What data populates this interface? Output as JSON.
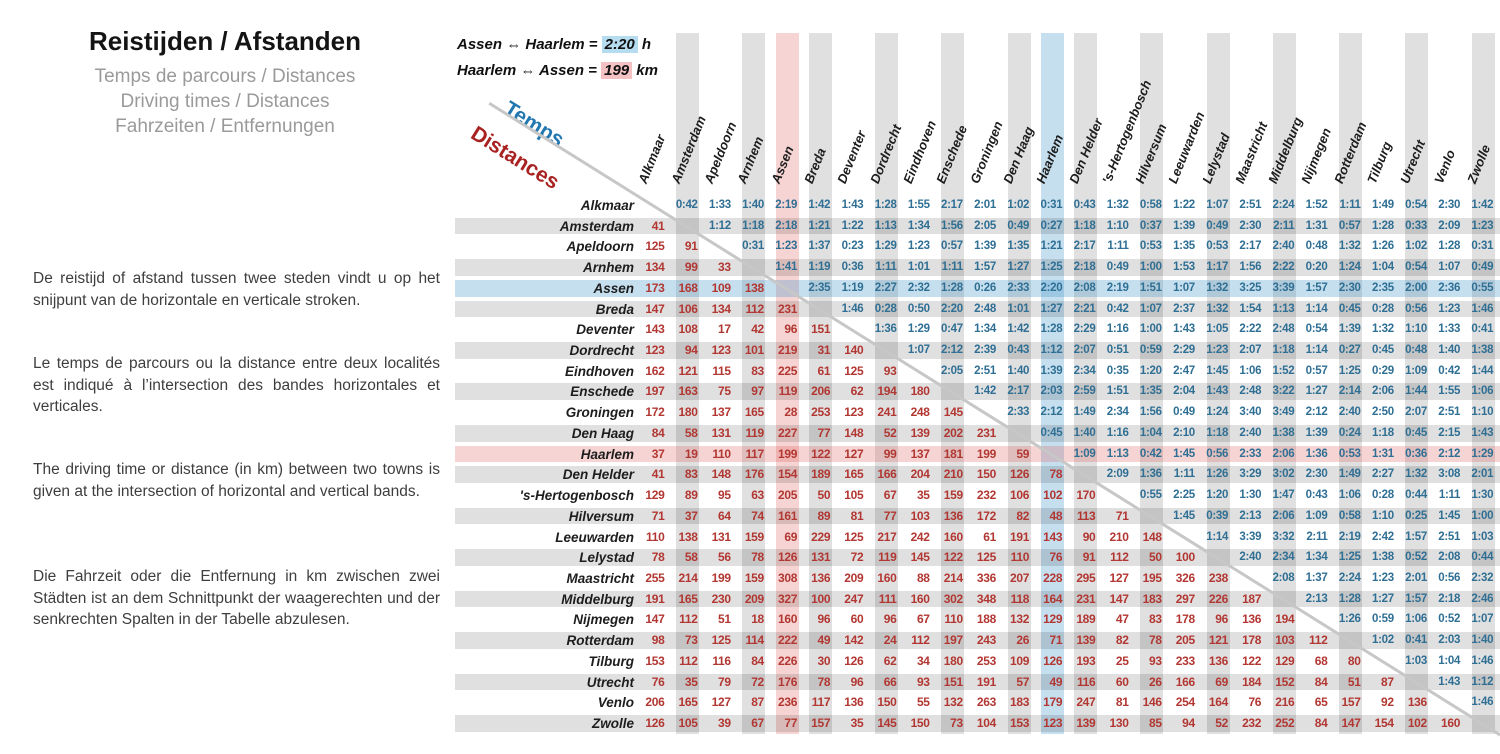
{
  "page": {
    "title": "Reistijden / Afstanden",
    "subtitles": [
      "Temps de parcours / Distances",
      "Driving times / Distances",
      "Fahrzeiten / Entfernungen"
    ],
    "paragraphs": {
      "nl": "De reistijd of afstand tussen twee steden vindt u op het snijpunt van de horizontale en verticale stroken.",
      "fr": "Le temps de parcours ou la distance entre deux localités est indiqué à l’intersection des bandes horizontales et verticales.",
      "en": "The driving time or distance (in km) between two towns is given at the intersection of horizontal and vertical bands.",
      "de": "Die Fahrzeit oder die Entfernung in km zwischen zwei Städten ist an dem Schnittpunkt der waagerechten und der senkrechten Spalten in der Tabelle abzulesen."
    },
    "legend": {
      "line1_prefix": "Assen ⇔ Haarlem = ",
      "line1_value": "2:20",
      "line1_suffix": " h",
      "line2_prefix": "Haarlem ⇔ Assen = ",
      "line2_value": "199",
      "line2_suffix": " km"
    },
    "diagonal_labels": {
      "time": "Temps",
      "distance": "Distances"
    }
  },
  "colors": {
    "time_text": "#2f6f94",
    "distance_text": "#b23732",
    "band_gray": "#e0e0e0",
    "highlight_blue": "#c8e1f1",
    "highlight_pink": "#f6d6d6",
    "legend_time_chip": "#b6dcf0",
    "legend_distance_chip": "#f4c2c2"
  },
  "chart_data": {
    "type": "table",
    "title": "Reistijden / Afstanden",
    "upper_triangle": "driving time (h:mm)",
    "lower_triangle": "distance (km)",
    "highlight_example": {
      "time_row": "Assen",
      "time_col": "Haarlem",
      "time": "2:20",
      "distance_row": "Haarlem",
      "distance_col": "Assen",
      "distance_km": 199
    },
    "cities": [
      "Alkmaar",
      "Amsterdam",
      "Apeldoorn",
      "Arnhem",
      "Assen",
      "Breda",
      "Deventer",
      "Dordrecht",
      "Eindhoven",
      "Enschede",
      "Groningen",
      "Den Haag",
      "Haarlem",
      "Den Helder",
      "'s-Hertogenbosch",
      "Hilversum",
      "Leeuwarden",
      "Lelystad",
      "Maastricht",
      "Middelburg",
      "Nijmegen",
      "Rotterdam",
      "Tilburg",
      "Utrecht",
      "Venlo",
      "Zwolle"
    ],
    "matrix": [
      [
        null,
        "0:42",
        "1:33",
        "1:40",
        "2:19",
        "1:42",
        "1:43",
        "1:28",
        "1:55",
        "2:17",
        "2:01",
        "1:02",
        "0:31",
        "0:43",
        "1:32",
        "0:58",
        "1:22",
        "1:07",
        "2:51",
        "2:24",
        "1:52",
        "1:11",
        "1:49",
        "0:54",
        "2:30",
        "1:42"
      ],
      [
        "41",
        null,
        "1:12",
        "1:18",
        "2:18",
        "1:21",
        "1:22",
        "1:13",
        "1:34",
        "1:56",
        "2:05",
        "0:49",
        "0:27",
        "1:18",
        "1:10",
        "0:37",
        "1:39",
        "0:49",
        "2:30",
        "2:11",
        "1:31",
        "0:57",
        "1:28",
        "0:33",
        "2:09",
        "1:23"
      ],
      [
        "125",
        "91",
        null,
        "0:31",
        "1:23",
        "1:37",
        "0:23",
        "1:29",
        "1:23",
        "0:57",
        "1:39",
        "1:35",
        "1:21",
        "2:17",
        "1:11",
        "0:53",
        "1:35",
        "0:53",
        "2:17",
        "2:40",
        "0:48",
        "1:32",
        "1:26",
        "1:02",
        "1:28",
        "0:31"
      ],
      [
        "134",
        "99",
        "33",
        null,
        "1:41",
        "1:19",
        "0:36",
        "1:11",
        "1:01",
        "1:11",
        "1:57",
        "1:27",
        "1:25",
        "2:18",
        "0:49",
        "1:00",
        "1:53",
        "1:17",
        "1:56",
        "2:22",
        "0:20",
        "1:24",
        "1:04",
        "0:54",
        "1:07",
        "0:49"
      ],
      [
        "173",
        "168",
        "109",
        "138",
        null,
        "2:35",
        "1:19",
        "2:27",
        "2:32",
        "1:28",
        "0:26",
        "2:33",
        "2:20",
        "2:08",
        "2:19",
        "1:51",
        "1:07",
        "1:32",
        "3:25",
        "3:39",
        "1:57",
        "2:30",
        "2:35",
        "2:00",
        "2:36",
        "0:55"
      ],
      [
        "147",
        "106",
        "134",
        "112",
        "231",
        null,
        "1:46",
        "0:28",
        "0:50",
        "2:20",
        "2:48",
        "1:01",
        "1:27",
        "2:21",
        "0:42",
        "1:07",
        "2:37",
        "1:32",
        "1:54",
        "1:13",
        "1:14",
        "0:45",
        "0:28",
        "0:56",
        "1:23",
        "1:46"
      ],
      [
        "143",
        "108",
        "17",
        "42",
        "96",
        "151",
        null,
        "1:36",
        "1:29",
        "0:47",
        "1:34",
        "1:42",
        "1:28",
        "2:29",
        "1:16",
        "1:00",
        "1:43",
        "1:05",
        "2:22",
        "2:48",
        "0:54",
        "1:39",
        "1:32",
        "1:10",
        "1:33",
        "0:41"
      ],
      [
        "123",
        "94",
        "123",
        "101",
        "219",
        "31",
        "140",
        null,
        "1:07",
        "2:12",
        "2:39",
        "0:43",
        "1:12",
        "2:07",
        "0:51",
        "0:59",
        "2:29",
        "1:23",
        "2:07",
        "1:18",
        "1:14",
        "0:27",
        "0:45",
        "0:48",
        "1:40",
        "1:38"
      ],
      [
        "162",
        "121",
        "115",
        "83",
        "225",
        "61",
        "125",
        "93",
        null,
        "2:05",
        "2:51",
        "1:40",
        "1:39",
        "2:34",
        "0:35",
        "1:20",
        "2:47",
        "1:45",
        "1:06",
        "1:52",
        "0:57",
        "1:25",
        "0:29",
        "1:09",
        "0:42",
        "1:44"
      ],
      [
        "197",
        "163",
        "75",
        "97",
        "119",
        "206",
        "62",
        "194",
        "180",
        null,
        "1:42",
        "2:17",
        "2:03",
        "2:59",
        "1:51",
        "1:35",
        "2:04",
        "1:43",
        "2:48",
        "3:22",
        "1:27",
        "2:14",
        "2:06",
        "1:44",
        "1:55",
        "1:06"
      ],
      [
        "172",
        "180",
        "137",
        "165",
        "28",
        "253",
        "123",
        "241",
        "248",
        "145",
        null,
        "2:33",
        "2:12",
        "1:49",
        "2:34",
        "1:56",
        "0:49",
        "1:24",
        "3:40",
        "3:49",
        "2:12",
        "2:40",
        "2:50",
        "2:07",
        "2:51",
        "1:10"
      ],
      [
        "84",
        "58",
        "131",
        "119",
        "227",
        "77",
        "148",
        "52",
        "139",
        "202",
        "231",
        null,
        "0:45",
        "1:40",
        "1:16",
        "1:04",
        "2:10",
        "1:18",
        "2:40",
        "1:38",
        "1:39",
        "0:24",
        "1:18",
        "0:45",
        "2:15",
        "1:43"
      ],
      [
        "37",
        "19",
        "110",
        "117",
        "199",
        "122",
        "127",
        "99",
        "137",
        "181",
        "199",
        "59",
        null,
        "1:09",
        "1:13",
        "0:42",
        "1:45",
        "0:56",
        "2:33",
        "2:06",
        "1:36",
        "0:53",
        "1:31",
        "0:36",
        "2:12",
        "1:29"
      ],
      [
        "41",
        "83",
        "148",
        "176",
        "154",
        "189",
        "165",
        "166",
        "204",
        "210",
        "150",
        "126",
        "78",
        null,
        "2:09",
        "1:36",
        "1:11",
        "1:26",
        "3:29",
        "3:02",
        "2:30",
        "1:49",
        "2:27",
        "1:32",
        "3:08",
        "2:01"
      ],
      [
        "129",
        "89",
        "95",
        "63",
        "205",
        "50",
        "105",
        "67",
        "35",
        "159",
        "232",
        "106",
        "102",
        "170",
        null,
        "0:55",
        "2:25",
        "1:20",
        "1:30",
        "1:47",
        "0:43",
        "1:06",
        "0:28",
        "0:44",
        "1:11",
        "1:30"
      ],
      [
        "71",
        "37",
        "64",
        "74",
        "161",
        "89",
        "81",
        "77",
        "103",
        "136",
        "172",
        "82",
        "48",
        "113",
        "71",
        null,
        "1:45",
        "0:39",
        "2:13",
        "2:06",
        "1:09",
        "0:58",
        "1:10",
        "0:25",
        "1:45",
        "1:00"
      ],
      [
        "110",
        "138",
        "131",
        "159",
        "69",
        "229",
        "125",
        "217",
        "242",
        "160",
        "61",
        "191",
        "143",
        "90",
        "210",
        "148",
        null,
        "1:14",
        "3:39",
        "3:32",
        "2:11",
        "2:19",
        "2:42",
        "1:57",
        "2:51",
        "1:03"
      ],
      [
        "78",
        "58",
        "56",
        "78",
        "126",
        "131",
        "72",
        "119",
        "145",
        "122",
        "125",
        "110",
        "76",
        "91",
        "112",
        "50",
        "100",
        null,
        "2:40",
        "2:34",
        "1:34",
        "1:25",
        "1:38",
        "0:52",
        "2:08",
        "0:44"
      ],
      [
        "255",
        "214",
        "199",
        "159",
        "308",
        "136",
        "209",
        "160",
        "88",
        "214",
        "336",
        "207",
        "228",
        "295",
        "127",
        "195",
        "326",
        "238",
        null,
        "2:08",
        "1:37",
        "2:24",
        "1:23",
        "2:01",
        "0:56",
        "2:32"
      ],
      [
        "191",
        "165",
        "230",
        "209",
        "327",
        "100",
        "247",
        "111",
        "160",
        "302",
        "348",
        "118",
        "164",
        "231",
        "147",
        "183",
        "297",
        "226",
        "187",
        null,
        "2:13",
        "1:28",
        "1:27",
        "1:57",
        "2:18",
        "2:46"
      ],
      [
        "147",
        "112",
        "51",
        "18",
        "160",
        "96",
        "60",
        "96",
        "67",
        "110",
        "188",
        "132",
        "129",
        "189",
        "47",
        "83",
        "178",
        "96",
        "136",
        "194",
        null,
        "1:26",
        "0:59",
        "1:06",
        "0:52",
        "1:07"
      ],
      [
        "98",
        "73",
        "125",
        "114",
        "222",
        "49",
        "142",
        "24",
        "112",
        "197",
        "243",
        "26",
        "71",
        "139",
        "82",
        "78",
        "205",
        "121",
        "178",
        "103",
        "112",
        null,
        "1:02",
        "0:41",
        "2:03",
        "1:40"
      ],
      [
        "153",
        "112",
        "116",
        "84",
        "226",
        "30",
        "126",
        "62",
        "34",
        "180",
        "253",
        "109",
        "126",
        "193",
        "25",
        "93",
        "233",
        "136",
        "122",
        "129",
        "68",
        "80",
        null,
        "1:03",
        "1:04",
        "1:46"
      ],
      [
        "76",
        "35",
        "79",
        "72",
        "176",
        "78",
        "96",
        "66",
        "93",
        "151",
        "191",
        "57",
        "49",
        "116",
        "60",
        "26",
        "166",
        "69",
        "184",
        "152",
        "84",
        "51",
        "87",
        null,
        "1:43",
        "1:12"
      ],
      [
        "206",
        "165",
        "127",
        "87",
        "236",
        "117",
        "136",
        "150",
        "55",
        "132",
        "263",
        "183",
        "179",
        "247",
        "81",
        "146",
        "254",
        "164",
        "76",
        "216",
        "65",
        "157",
        "92",
        "136",
        null,
        "1:46"
      ],
      [
        "126",
        "105",
        "39",
        "67",
        "77",
        "157",
        "35",
        "145",
        "150",
        "73",
        "104",
        "153",
        "123",
        "139",
        "130",
        "85",
        "94",
        "52",
        "232",
        "252",
        "84",
        "147",
        "154",
        "102",
        "160",
        null
      ]
    ]
  }
}
